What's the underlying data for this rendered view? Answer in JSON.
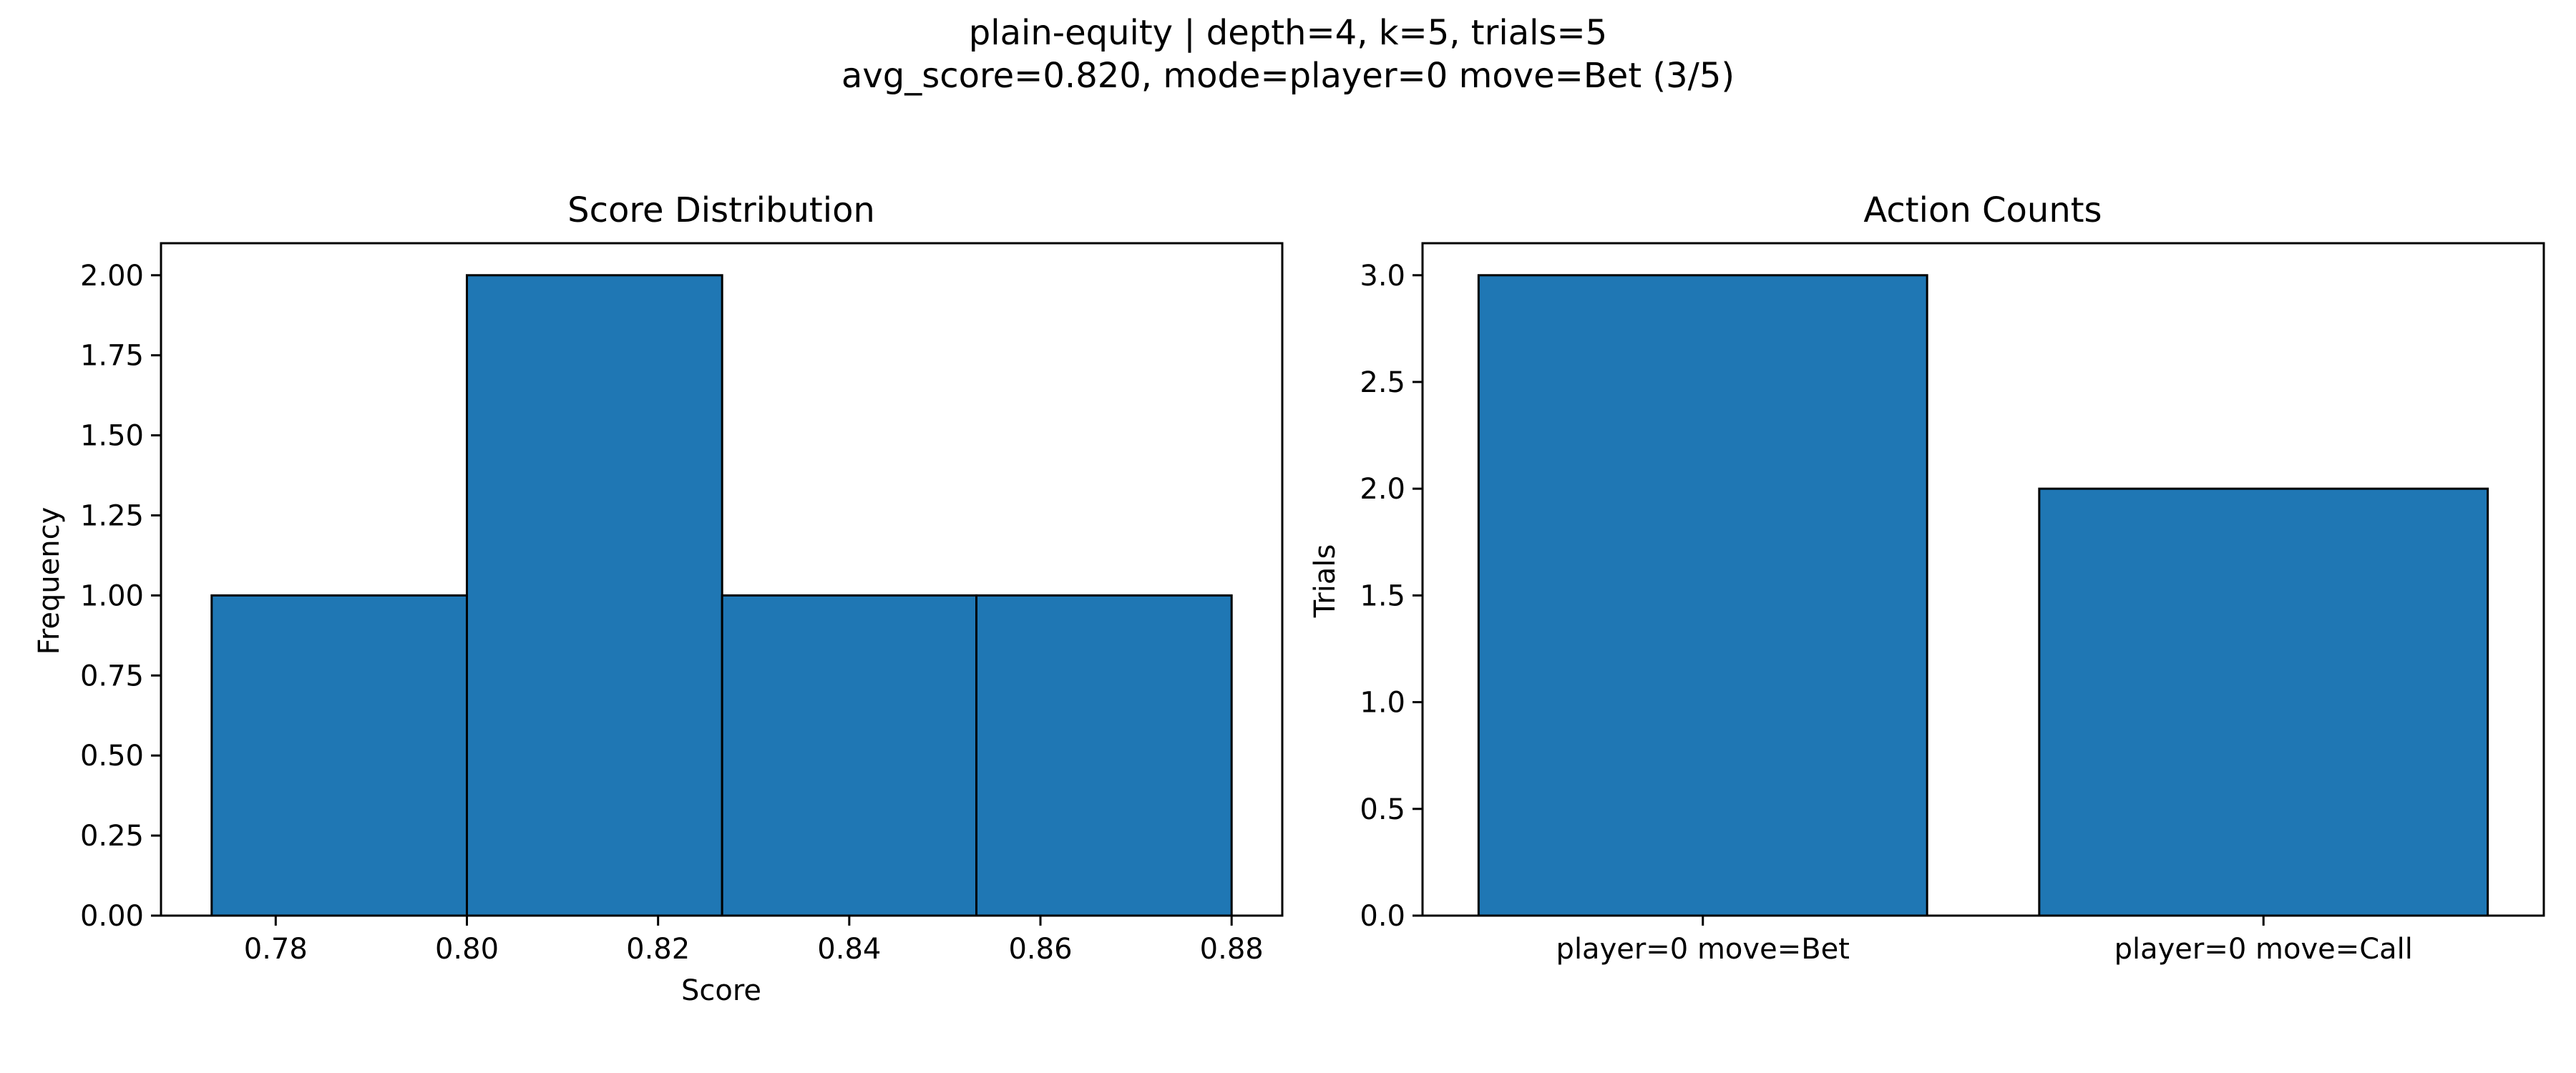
{
  "figure": {
    "suptitle_line1": "plain-equity | depth=4, k=5, trials=5",
    "suptitle_line2": "avg_score=0.820, mode=player=0 move=Bet (3/5)"
  },
  "colors": {
    "bar_fill": "#1f77b4",
    "bar_edge": "#000000",
    "axes": "#000000",
    "text": "#000000"
  },
  "chart_data": [
    {
      "type": "histogram",
      "title": "Score Distribution",
      "xlabel": "Score",
      "ylabel": "Frequency",
      "bins": [
        {
          "start": 0.7733,
          "end": 0.8,
          "count": 1
        },
        {
          "start": 0.8,
          "end": 0.8267,
          "count": 2
        },
        {
          "start": 0.8267,
          "end": 0.8533,
          "count": 1
        },
        {
          "start": 0.8533,
          "end": 0.88,
          "count": 1
        }
      ],
      "xlim": [
        0.768,
        0.8853
      ],
      "ylim": [
        0,
        2.1
      ],
      "xticks": [
        0.78,
        0.8,
        0.82,
        0.84,
        0.86,
        0.88
      ],
      "xtick_labels": [
        "0.78",
        "0.80",
        "0.82",
        "0.84",
        "0.86",
        "0.88"
      ],
      "yticks": [
        0,
        0.25,
        0.5,
        0.75,
        1.0,
        1.25,
        1.5,
        1.75,
        2.0
      ],
      "ytick_labels": [
        "0.00",
        "0.25",
        "0.50",
        "0.75",
        "1.00",
        "1.25",
        "1.50",
        "1.75",
        "2.00"
      ],
      "grid": false
    },
    {
      "type": "bar",
      "title": "Action Counts",
      "xlabel": "",
      "ylabel": "Trials",
      "categories": [
        "player=0 move=Bet",
        "player=0 move=Call"
      ],
      "values": [
        3,
        2
      ],
      "xlim": [
        -0.5,
        1.5
      ],
      "ylim": [
        0,
        3.15
      ],
      "bar_width": 0.8,
      "yticks": [
        0,
        0.5,
        1.0,
        1.5,
        2.0,
        2.5,
        3.0
      ],
      "ytick_labels": [
        "0.0",
        "0.5",
        "1.0",
        "1.5",
        "2.0",
        "2.5",
        "3.0"
      ],
      "grid": false
    }
  ]
}
